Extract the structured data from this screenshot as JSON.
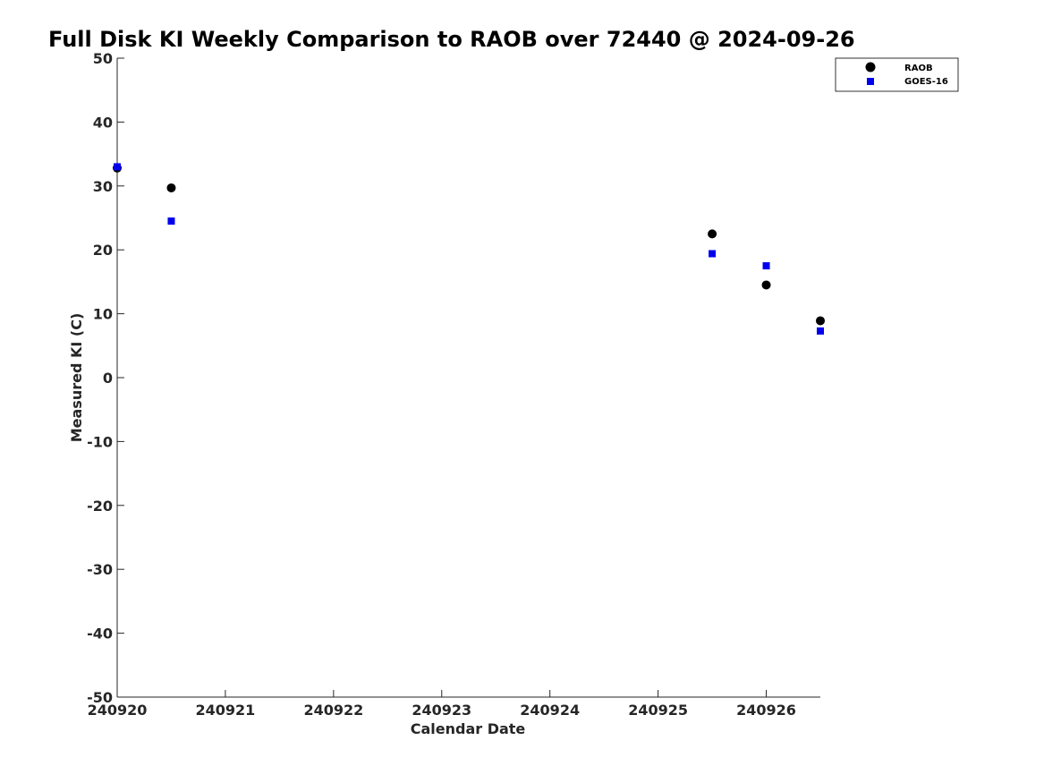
{
  "chart_data": {
    "type": "scatter",
    "title": "Full Disk KI Weekly Comparison to RAOB over 72440 @ 2024-09-26",
    "xlabel": "Calendar Date",
    "ylabel": "Measured KI (C)",
    "xlim": [
      "2024-09-20",
      "2024-09-26 12:00"
    ],
    "ylim": [
      -50,
      50
    ],
    "x_tick_values": [
      "2024-09-20",
      "2024-09-21",
      "2024-09-22",
      "2024-09-23",
      "2024-09-24",
      "2024-09-25",
      "2024-09-26"
    ],
    "x_ticks": [
      "240920",
      "240921",
      "240922",
      "240923",
      "240924",
      "240925",
      "240926"
    ],
    "y_ticks": [
      50,
      40,
      30,
      20,
      10,
      0,
      -10,
      -20,
      -30,
      -40,
      -50
    ],
    "grid": false,
    "legend_position": "top-right",
    "series": [
      {
        "name": "RAOB",
        "marker": "circle",
        "color": "#000000",
        "points": [
          {
            "x": "2024-09-20 00:00",
            "y": 32.8
          },
          {
            "x": "2024-09-20 12:00",
            "y": 29.7
          },
          {
            "x": "2024-09-25 12:00",
            "y": 22.5
          },
          {
            "x": "2024-09-26 00:00",
            "y": 14.5
          },
          {
            "x": "2024-09-26 12:00",
            "y": 8.9
          }
        ]
      },
      {
        "name": "GOES-16",
        "marker": "square",
        "color": "#0000ee",
        "points": [
          {
            "x": "2024-09-20 00:00",
            "y": 33.0
          },
          {
            "x": "2024-09-20 12:00",
            "y": 24.5
          },
          {
            "x": "2024-09-25 12:00",
            "y": 19.4
          },
          {
            "x": "2024-09-26 00:00",
            "y": 17.5
          },
          {
            "x": "2024-09-26 12:00",
            "y": 7.3
          }
        ]
      }
    ]
  }
}
